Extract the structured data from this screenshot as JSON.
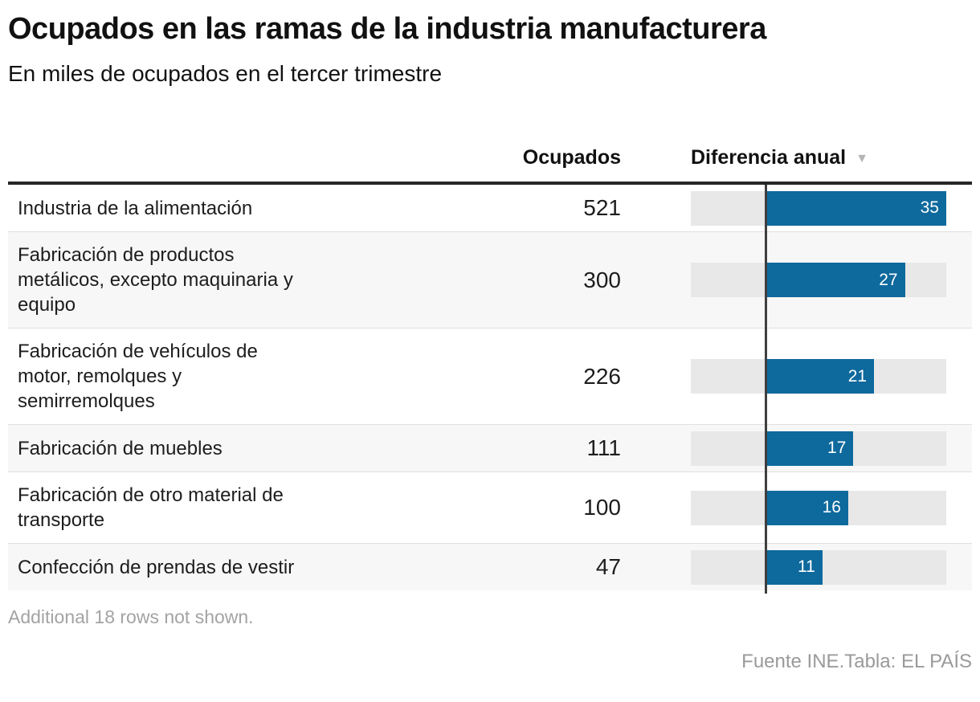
{
  "header": {
    "title": "Ocupados en las ramas de la industria manufacturera",
    "subtitle": "En miles de ocupados en el tercer trimestre"
  },
  "table": {
    "columns": {
      "ocupados": "Ocupados",
      "diferencia": "Diferencia anual",
      "sort_icon": "▼"
    },
    "rows": [
      {
        "label": "Industria de la alimentación",
        "ocupados": "521",
        "diferencia": 35
      },
      {
        "label": "Fabricación de productos\nmetálicos, excepto maquinaria y\nequipo",
        "ocupados": "300",
        "diferencia": 27
      },
      {
        "label": "Fabricación de vehículos de\nmotor, remolques y\nsemirremolques",
        "ocupados": "226",
        "diferencia": 21
      },
      {
        "label": "Fabricación de muebles",
        "ocupados": "111",
        "diferencia": 17
      },
      {
        "label": "Fabricación de otro material de\ntransporte",
        "ocupados": "100",
        "diferencia": 16
      },
      {
        "label": "Confección de prendas de vestir",
        "ocupados": "47",
        "diferencia": 11
      }
    ]
  },
  "chart_data": {
    "type": "bar",
    "orientation": "horizontal",
    "title": "Ocupados en las ramas de la industria manufacturera",
    "subtitle": "En miles de ocupados en el tercer trimestre",
    "categories": [
      "Industria de la alimentación",
      "Fabricación de productos metálicos, excepto maquinaria y equipo",
      "Fabricación de vehículos de motor, remolques y semirremolques",
      "Fabricación de muebles",
      "Fabricación de otro material de transporte",
      "Confección de prendas de vestir"
    ],
    "series": [
      {
        "name": "Ocupados",
        "values": [
          521,
          300,
          226,
          111,
          100,
          47
        ]
      },
      {
        "name": "Diferencia anual",
        "values": [
          35,
          27,
          21,
          17,
          16,
          11
        ]
      }
    ],
    "xlabel": "",
    "ylabel": "",
    "xlim": [
      -14.5,
      35
    ],
    "grid": false,
    "legend": false,
    "bar_color": "#0e699d",
    "track_color": "#e8e8e8",
    "zero_line_color": "#3f3f3f"
  },
  "footer": {
    "note": "Additional 18 rows not shown.",
    "source": "Fuente INE.Tabla: EL PAÍS"
  },
  "colors": {
    "accent_blue": "#0e699d",
    "row_shade": "#f7f7f7",
    "track_gray": "#e8e8e8",
    "header_rule": "#262626",
    "muted_text": "#a3a3a3"
  }
}
